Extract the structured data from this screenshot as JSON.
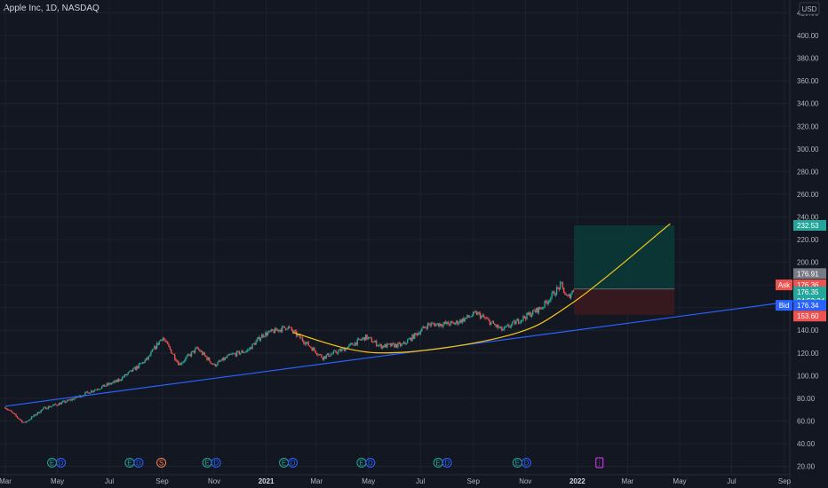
{
  "header": {
    "title": "Apple Inc, 1D, NASDAQ",
    "currency": "USD"
  },
  "colors": {
    "background": "#131722",
    "up": "#26a69a",
    "down": "#ef5350",
    "trendline": "#2962ff",
    "curve": "#f5c518",
    "profit_zone": "#0b3b38",
    "loss_zone": "#3b1a1e",
    "grid": "#1e222d"
  },
  "chart_data": {
    "type": "line",
    "title": "Apple Inc, 1D, NASDAQ",
    "ylabel": "USD",
    "ylim": [
      20,
      420
    ],
    "y_ticks": [
      20,
      40,
      60,
      80,
      100,
      120,
      140,
      160,
      180,
      200,
      220,
      240,
      260,
      280,
      300,
      320,
      340,
      360,
      380,
      400,
      420
    ],
    "y_tick_labels": [
      "20.00",
      "40.00",
      "60.00",
      "80.00",
      "100.00",
      "120.00",
      "140.00",
      "160.00",
      "180.00",
      "200.00",
      "220.00",
      "240.00",
      "260.00",
      "280.00",
      "300.00",
      "320.00",
      "340.00",
      "360.00",
      "380.00",
      "400.00",
      "420.00"
    ],
    "x_tick_labels": [
      "Mar",
      "May",
      "Jul",
      "Sep",
      "Nov",
      "2021",
      "Mar",
      "May",
      "Jul",
      "Sep",
      "Nov",
      "2022",
      "Mar",
      "May",
      "Jul",
      "Sep"
    ],
    "x_tick_dates": [
      "2020-03-01",
      "2020-05-01",
      "2020-07-01",
      "2020-09-01",
      "2020-11-01",
      "2021-01-01",
      "2021-03-01",
      "2021-05-01",
      "2021-07-01",
      "2021-09-01",
      "2021-11-01",
      "2022-01-01",
      "2022-03-01",
      "2022-05-01",
      "2022-07-01",
      "2022-09-01"
    ],
    "price_path": [
      {
        "date": "2020-03-01",
        "price": 72
      },
      {
        "date": "2020-03-23",
        "price": 58
      },
      {
        "date": "2020-04-15",
        "price": 71
      },
      {
        "date": "2020-05-15",
        "price": 78
      },
      {
        "date": "2020-06-15",
        "price": 88
      },
      {
        "date": "2020-07-10",
        "price": 95
      },
      {
        "date": "2020-07-31",
        "price": 106
      },
      {
        "date": "2020-08-15",
        "price": 115
      },
      {
        "date": "2020-09-01",
        "price": 134
      },
      {
        "date": "2020-09-21",
        "price": 110
      },
      {
        "date": "2020-10-12",
        "price": 124
      },
      {
        "date": "2020-11-01",
        "price": 109
      },
      {
        "date": "2020-11-20",
        "price": 118
      },
      {
        "date": "2020-12-10",
        "price": 122
      },
      {
        "date": "2020-12-28",
        "price": 136
      },
      {
        "date": "2021-01-26",
        "price": 143
      },
      {
        "date": "2021-02-15",
        "price": 130
      },
      {
        "date": "2021-03-08",
        "price": 116
      },
      {
        "date": "2021-04-01",
        "price": 123
      },
      {
        "date": "2021-04-28",
        "price": 134
      },
      {
        "date": "2021-05-15",
        "price": 126
      },
      {
        "date": "2021-06-10",
        "price": 127
      },
      {
        "date": "2021-07-10",
        "price": 145
      },
      {
        "date": "2021-08-10",
        "price": 146
      },
      {
        "date": "2021-09-05",
        "price": 155
      },
      {
        "date": "2021-10-05",
        "price": 140
      },
      {
        "date": "2021-10-25",
        "price": 149
      },
      {
        "date": "2021-11-20",
        "price": 160
      },
      {
        "date": "2021-12-13",
        "price": 180
      },
      {
        "date": "2021-12-20",
        "price": 168
      },
      {
        "date": "2021-12-28",
        "price": 176
      }
    ],
    "trendline": [
      {
        "date": "2020-03-01",
        "price": 73
      },
      {
        "date": "2022-10-15",
        "price": 169
      }
    ],
    "curve_fit": [
      {
        "date": "2021-02-01",
        "price": 138
      },
      {
        "date": "2021-05-15",
        "price": 120
      },
      {
        "date": "2021-10-10",
        "price": 135
      },
      {
        "date": "2021-12-28",
        "price": 165
      },
      {
        "date": "2022-04-20",
        "price": 234
      }
    ],
    "position": {
      "entry": 176.35,
      "target": 232.53,
      "stop": 153.6,
      "start_date": "2021-12-28",
      "end_date": "2022-04-25"
    },
    "event_markers": [
      {
        "date": "2020-04-30",
        "labels": [
          "E",
          "D"
        ]
      },
      {
        "date": "2020-07-30",
        "labels": [
          "E",
          "D"
        ]
      },
      {
        "date": "2020-08-31",
        "labels": [
          "S"
        ]
      },
      {
        "date": "2020-10-29",
        "labels": [
          "E",
          "D"
        ]
      },
      {
        "date": "2021-01-27",
        "labels": [
          "E",
          "D"
        ]
      },
      {
        "date": "2021-04-28",
        "labels": [
          "E",
          "D"
        ]
      },
      {
        "date": "2021-07-27",
        "labels": [
          "E",
          "D"
        ]
      },
      {
        "date": "2021-10-28",
        "labels": [
          "E",
          "D"
        ]
      },
      {
        "date": "2022-01-27",
        "labels": [
          "E"
        ]
      }
    ]
  },
  "price_scale": {
    "tags": [
      {
        "label": "",
        "value": "232.53",
        "color": "#26a69a",
        "price": 232.53
      },
      {
        "label": "",
        "value": "176.91",
        "color": "#787b86",
        "price": 190
      },
      {
        "label": "Ask",
        "value": "176.36",
        "color": "#ef5350",
        "price": 180
      },
      {
        "label": "",
        "value": "176.35",
        "color": "#26a69a",
        "price": 170,
        "sub": "04:53:24"
      },
      {
        "label": "Bid",
        "value": "176.34",
        "color": "#2962ff",
        "price": 162
      },
      {
        "label": "",
        "value": "153.60",
        "color": "#ef5350",
        "price": 152.5
      }
    ]
  }
}
